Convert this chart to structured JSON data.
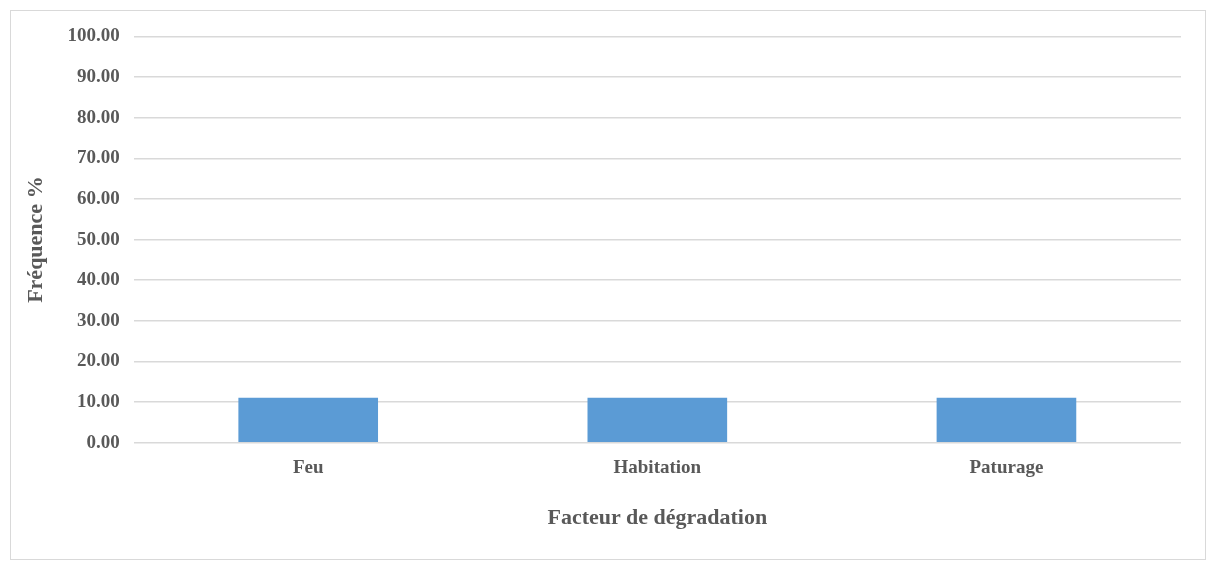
{
  "chart_data": {
    "type": "bar",
    "xlabel": "Facteur de dégradation",
    "ylabel": "Fréquence %",
    "categories": [
      "Feu",
      "Habitation",
      "Paturage"
    ],
    "values": [
      11.1,
      11.1,
      11.1
    ],
    "color": "#5b9bd5",
    "ylim": [
      0,
      100
    ],
    "yticks": [
      {
        "value": 0,
        "label": "0.00"
      },
      {
        "value": 10,
        "label": "10.00"
      },
      {
        "value": 20,
        "label": "20.00"
      },
      {
        "value": 30,
        "label": "30.00"
      },
      {
        "value": 40,
        "label": "40.00"
      },
      {
        "value": 50,
        "label": "50.00"
      },
      {
        "value": 60,
        "label": "60.00"
      },
      {
        "value": 70,
        "label": "70.00"
      },
      {
        "value": 80,
        "label": "80.00"
      },
      {
        "value": 90,
        "label": "90.00"
      },
      {
        "value": 100,
        "label": "100.00"
      }
    ],
    "grid": "y",
    "legend": false
  }
}
